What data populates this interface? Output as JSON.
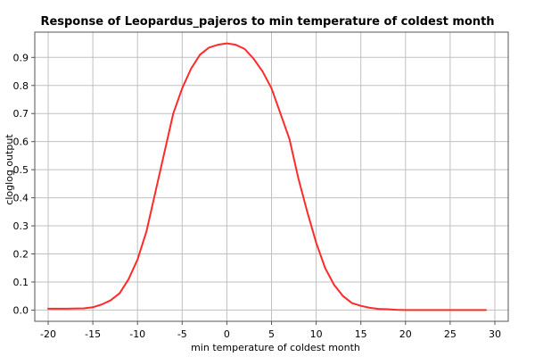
{
  "chart_data": {
    "type": "line",
    "title": "Response of Leopardus_pajeros to min temperature of coldest month",
    "xlabel": "min temperature of coldest month",
    "ylabel": "cloglog output",
    "xlim": [
      -21.5,
      31.5
    ],
    "ylim": [
      -0.04,
      0.99
    ],
    "xticks": [
      -20,
      -15,
      -10,
      -5,
      0,
      5,
      10,
      15,
      20,
      25,
      30
    ],
    "yticks": [
      0.0,
      0.1,
      0.2,
      0.3,
      0.4,
      0.5,
      0.6,
      0.7,
      0.8,
      0.9
    ],
    "xtick_labels": [
      "-20",
      "-15",
      "-10",
      "-5",
      "0",
      "5",
      "10",
      "15",
      "20",
      "25",
      "30"
    ],
    "ytick_labels": [
      "0.0",
      "0.1",
      "0.2",
      "0.3",
      "0.4",
      "0.5",
      "0.6",
      "0.7",
      "0.8",
      "0.9"
    ],
    "grid": true,
    "series": [
      {
        "color": "#ff2a2a",
        "x": [
          -20,
          -18,
          -16,
          -15,
          -14,
          -13,
          -12,
          -11,
          -10,
          -9,
          -8,
          -7,
          -6,
          -5,
          -4,
          -3,
          -2,
          -1,
          0,
          1,
          2,
          3,
          4,
          5,
          6,
          7,
          8,
          9,
          10,
          11,
          12,
          13,
          14,
          15,
          16,
          17,
          18,
          19,
          20,
          22,
          25,
          27,
          29
        ],
        "y": [
          0.005,
          0.005,
          0.006,
          0.01,
          0.02,
          0.035,
          0.06,
          0.11,
          0.18,
          0.28,
          0.42,
          0.56,
          0.7,
          0.79,
          0.86,
          0.91,
          0.935,
          0.945,
          0.95,
          0.945,
          0.93,
          0.895,
          0.85,
          0.79,
          0.7,
          0.61,
          0.47,
          0.35,
          0.24,
          0.15,
          0.09,
          0.05,
          0.025,
          0.015,
          0.008,
          0.004,
          0.003,
          0.001,
          0.0,
          0.0,
          0.0,
          0.0,
          0.0
        ]
      }
    ]
  }
}
